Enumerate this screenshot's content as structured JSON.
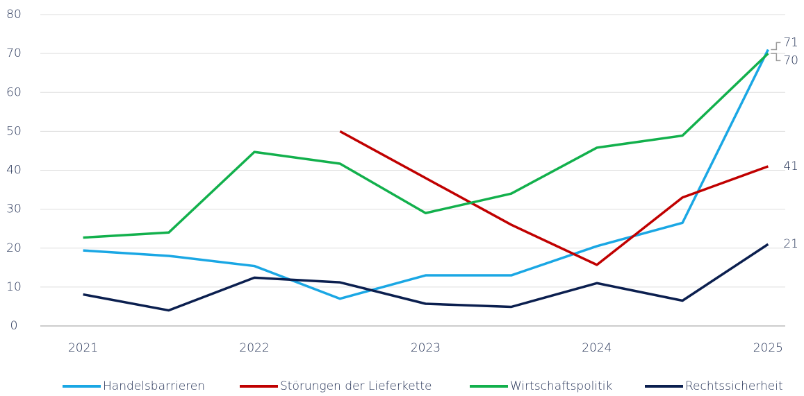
{
  "chart_data": {
    "type": "line",
    "x": [
      2021,
      2021.5,
      2022,
      2022.5,
      2023,
      2023.5,
      2024,
      2024.5,
      2025
    ],
    "xlim": [
      2020.75,
      2025.1
    ],
    "xticks": [
      2021,
      2022,
      2023,
      2024,
      2025
    ],
    "ylim": [
      0,
      80
    ],
    "yticks": [
      0,
      10,
      20,
      30,
      40,
      50,
      60,
      70,
      80
    ],
    "grid": true,
    "legend": "bottom",
    "series": [
      {
        "name": "Handelsbarrieren",
        "color": "#1aa7e4",
        "values": [
          19.4,
          18,
          15.4,
          7,
          13,
          13,
          20.5,
          26.5,
          71
        ]
      },
      {
        "name": "Störungen der Lieferkette",
        "color": "#c00000",
        "values": [
          null,
          null,
          null,
          50,
          38,
          26,
          15.7,
          33,
          41
        ]
      },
      {
        "name": "Wirtschaftspolitik",
        "color": "#12b04c",
        "values": [
          22.7,
          24,
          44.7,
          41.7,
          29,
          34,
          45.8,
          48.9,
          70
        ]
      },
      {
        "name": "Rechtssicherheit",
        "color": "#0b1f4f",
        "values": [
          8.1,
          4,
          12.4,
          11.2,
          5.7,
          4.9,
          11,
          6.5,
          21
        ]
      }
    ]
  }
}
